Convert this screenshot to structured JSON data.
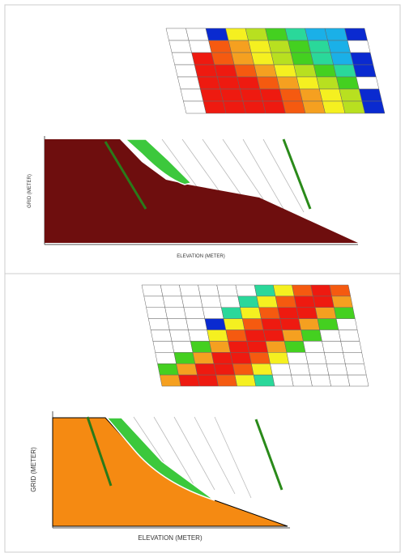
{
  "panels": [
    {
      "x_label": "ELEVATION (METER)",
      "y_label": "GRID (METER)"
    },
    {
      "x_label": "ELEVATION (METER)",
      "y_label": "GRID (METER)"
    }
  ]
}
